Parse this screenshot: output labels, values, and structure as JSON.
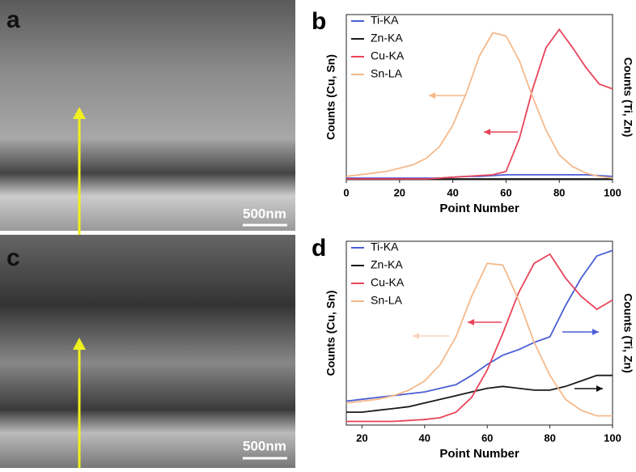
{
  "panels": [
    {
      "label": "a",
      "scale_bar": "500nm"
    },
    {
      "label": "c",
      "scale_bar": "500nm"
    }
  ],
  "chart_data": [
    {
      "type": "line",
      "label": "b",
      "x_label": "Point Number",
      "y_label": "Counts (Cu, Sn)",
      "y2_label": "Counts (Ti, Zn)",
      "x": [
        0,
        5,
        10,
        15,
        20,
        25,
        30,
        35,
        40,
        45,
        50,
        55,
        60,
        65,
        70,
        75,
        80,
        85,
        90,
        95,
        100
      ],
      "xlim": [
        0,
        100
      ],
      "xticks": [
        0,
        20,
        40,
        60,
        80,
        100
      ],
      "ylim": [
        0,
        100
      ],
      "legend": "upper left",
      "series": [
        {
          "name": "Ti-KA",
          "color": "#4a5fd6",
          "values": [
            1,
            1,
            1,
            1,
            1,
            1,
            1,
            1,
            1.5,
            2,
            2,
            2.5,
            3,
            3,
            3,
            3,
            3,
            3,
            3,
            2.5,
            2
          ]
        },
        {
          "name": "Zn-KA",
          "color": "#1a1a1a",
          "values": [
            0.5,
            0.5,
            0.5,
            0.5,
            0.5,
            0.5,
            0.5,
            0.5,
            0.5,
            0.5,
            0.5,
            0.5,
            0.5,
            0.5,
            0.5,
            0.5,
            0.5,
            0.5,
            0.5,
            0.5,
            0.5
          ]
        },
        {
          "name": "Cu-KA",
          "color": "#e8445a",
          "values": [
            0.5,
            0.5,
            0.5,
            0.5,
            0.5,
            0.5,
            0.5,
            1,
            1.5,
            2,
            2.5,
            3,
            5,
            25,
            55,
            80,
            91,
            80,
            68,
            58,
            55
          ]
        },
        {
          "name": "Sn-LA",
          "color": "#f5b98a",
          "values": [
            2,
            3,
            4,
            5,
            7,
            9,
            13,
            20,
            33,
            52,
            75,
            89,
            87,
            72,
            50,
            30,
            15,
            8,
            4,
            2,
            1
          ]
        }
      ]
    },
    {
      "type": "line",
      "label": "d",
      "x_label": "Point Number",
      "y_label": "Counts (Cu, Sn)",
      "y2_label": "Counts (Ti, Zn)",
      "x": [
        15,
        20,
        25,
        30,
        35,
        40,
        45,
        50,
        55,
        60,
        65,
        70,
        75,
        80,
        85,
        90,
        95,
        100
      ],
      "xlim": [
        15,
        100
      ],
      "xticks": [
        20,
        40,
        60,
        80,
        100
      ],
      "ylim": [
        0,
        100
      ],
      "legend": "upper left",
      "series": [
        {
          "name": "Ti-KA",
          "color": "#4a5fd6",
          "values": [
            13,
            14,
            15,
            16,
            17,
            18,
            20,
            22,
            27,
            33,
            38,
            41,
            45,
            48,
            65,
            80,
            92,
            95
          ]
        },
        {
          "name": "Zn-KA",
          "color": "#1a1a1a",
          "values": [
            7,
            7,
            8,
            9,
            10,
            12,
            14,
            16,
            18,
            20,
            21,
            20,
            19,
            19,
            21,
            24,
            27,
            27
          ]
        },
        {
          "name": "Cu-KA",
          "color": "#e8445a",
          "values": [
            2,
            2,
            2,
            2,
            2.5,
            3,
            4,
            7,
            15,
            30,
            50,
            72,
            88,
            93,
            80,
            70,
            63,
            68
          ]
        },
        {
          "name": "Sn-LA",
          "color": "#f5b98a",
          "values": [
            12,
            13,
            14,
            16,
            19,
            24,
            33,
            48,
            70,
            88,
            87,
            68,
            45,
            27,
            14,
            8,
            5,
            5
          ]
        }
      ]
    }
  ]
}
